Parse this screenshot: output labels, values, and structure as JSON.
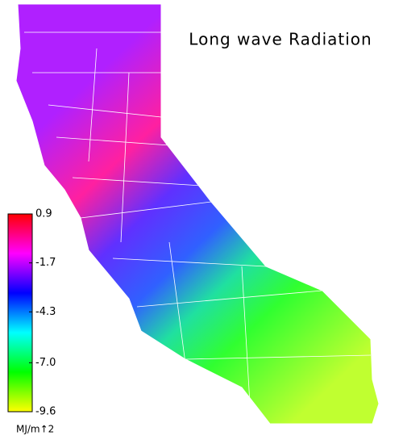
{
  "title": "Long wave Radiation",
  "colorbar": {
    "lim": [
      -9.6,
      0.9
    ],
    "ticks": [
      0.9,
      -1.7,
      -4.3,
      {
        "value": -7,
        "label": "-7.0"
      },
      -9.6
    ],
    "unit": "MJ/m↑2",
    "colors": [
      "#ffff00",
      "#00ff00",
      "#00ffff",
      "#0000ff",
      "#ff00ff",
      "#ff0000"
    ]
  }
}
